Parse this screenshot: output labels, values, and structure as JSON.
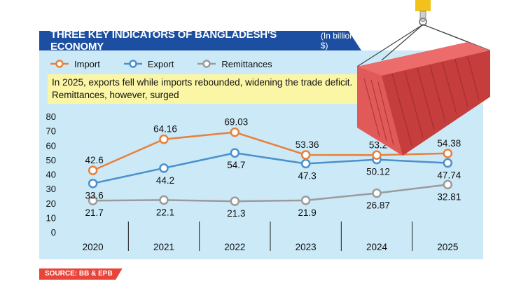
{
  "header": {
    "title": "THREE KEY INDICATORS OF BANGLADESH'S ECONOMY",
    "units": "(In billion $)"
  },
  "note": {
    "line1": "In 2025, exports fell while imports rebounded, widening the trade deficit.",
    "line2": "Remittances, however, surged"
  },
  "source": {
    "label": "SOURCE: BB & EPB"
  },
  "colors": {
    "import": "#e8803a",
    "export": "#4a90cd",
    "remittances": "#9b9b9b",
    "header_bg": "#1c4fa1",
    "panel_bg": "#cce9f8",
    "note_bg": "#fbf6a6",
    "source_bg": "#e8443a"
  },
  "chart_data": {
    "type": "line",
    "title": "THREE KEY INDICATORS OF BANGLADESH'S ECONOMY",
    "subtitle": "In 2025, exports fell while imports rebounded, widening the trade deficit. Remittances, however, surged",
    "xlabel": "",
    "ylabel": "In billion $",
    "categories": [
      "2020",
      "2021",
      "2022",
      "2023",
      "2024",
      "2025"
    ],
    "yticks": [
      "0",
      "10",
      "20",
      "30",
      "40",
      "50",
      "60",
      "70",
      "80"
    ],
    "ylim": [
      0,
      80
    ],
    "grid": "vertical",
    "legend_position": "top-left",
    "series": [
      {
        "name": "Import",
        "values": [
          42.6,
          64.16,
          69.03,
          53.36,
          53.2,
          54.38
        ],
        "labels": [
          "42.6",
          "64.16",
          "69.03",
          "53.36",
          "53.2",
          "54.38"
        ]
      },
      {
        "name": "Export",
        "values": [
          33.6,
          44.2,
          54.7,
          47.3,
          50.12,
          47.74
        ],
        "labels": [
          "33.6",
          "44.2",
          "54.7",
          "47.3",
          "50.12",
          "47.74"
        ]
      },
      {
        "name": "Remittances",
        "values": [
          21.7,
          22.1,
          21.3,
          21.9,
          26.87,
          32.81
        ],
        "labels": [
          "21.7",
          "22.1",
          "21.3",
          "21.9",
          "26.87",
          "32.81"
        ]
      }
    ]
  }
}
